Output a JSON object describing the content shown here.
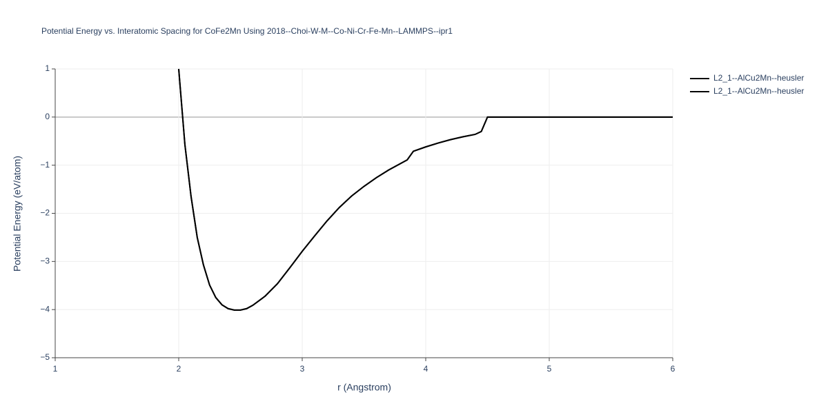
{
  "chart_data": {
    "type": "line",
    "title": "Potential Energy vs. Interatomic Spacing for CoFe2Mn Using 2018--Choi-W-M--Co-Ni-Cr-Fe-Mn--LAMMPS--ipr1",
    "x_label": "r (Angstrom)",
    "y_label": "Potential Energy (eV/atom)",
    "x": [
      2.0,
      2.05,
      2.1,
      2.15,
      2.2,
      2.25,
      2.3,
      2.35,
      2.4,
      2.45,
      2.5,
      2.55,
      2.6,
      2.7,
      2.8,
      2.9,
      3.0,
      3.1,
      3.2,
      3.3,
      3.4,
      3.5,
      3.6,
      3.7,
      3.8,
      3.85,
      3.9,
      4.0,
      4.1,
      4.2,
      4.3,
      4.4,
      4.45,
      4.5,
      5.0,
      5.5,
      6.0
    ],
    "series": [
      {
        "name": "L2_1--AlCu2Mn--heusler",
        "color": "#000000",
        "values": [
          1.0,
          -0.57,
          -1.65,
          -2.5,
          -3.07,
          -3.49,
          -3.75,
          -3.9,
          -3.98,
          -4.01,
          -4.01,
          -3.98,
          -3.91,
          -3.72,
          -3.46,
          -3.13,
          -2.79,
          -2.47,
          -2.16,
          -1.88,
          -1.64,
          -1.44,
          -1.26,
          -1.1,
          -0.96,
          -0.89,
          -0.71,
          -0.62,
          -0.54,
          -0.47,
          -0.41,
          -0.36,
          -0.3,
          0,
          0,
          0,
          0
        ]
      },
      {
        "name": "L2_1--AlCu2Mn--heusler",
        "color": "#000000",
        "values": [
          1.0,
          -0.57,
          -1.65,
          -2.5,
          -3.07,
          -3.49,
          -3.75,
          -3.9,
          -3.98,
          -4.01,
          -4.01,
          -3.98,
          -3.91,
          -3.72,
          -3.46,
          -3.13,
          -2.79,
          -2.47,
          -2.16,
          -1.88,
          -1.64,
          -1.44,
          -1.26,
          -1.1,
          -0.96,
          -0.89,
          -0.71,
          -0.62,
          -0.54,
          -0.47,
          -0.41,
          -0.36,
          -0.3,
          0,
          0,
          0,
          0
        ]
      }
    ],
    "xlim": [
      1,
      6
    ],
    "xticks": [
      1,
      2,
      3,
      4,
      5,
      6
    ],
    "ylim": [
      -5,
      1
    ],
    "yticks": [
      {
        "value": -5,
        "label": "−5"
      },
      {
        "value": -4,
        "label": "−4"
      },
      {
        "value": -3,
        "label": "−3"
      },
      {
        "value": -2,
        "label": "−2"
      },
      {
        "value": -1,
        "label": "−1"
      },
      0,
      1
    ],
    "grid": true
  }
}
